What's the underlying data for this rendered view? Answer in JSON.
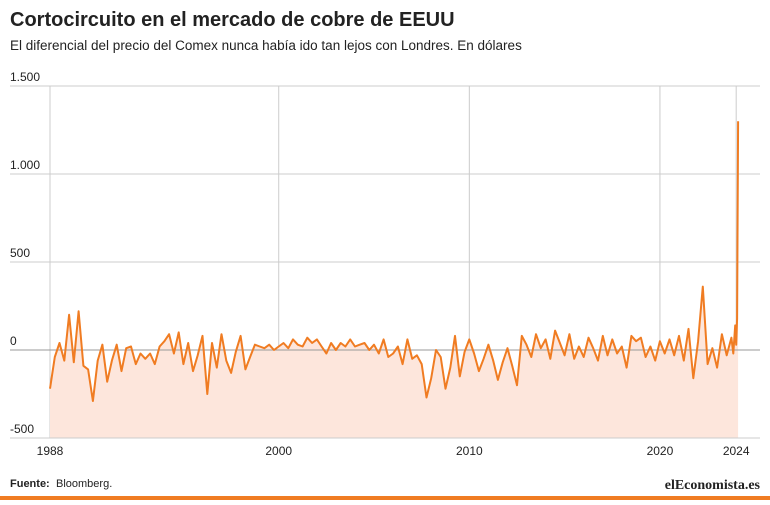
{
  "chart_data": {
    "type": "line",
    "title": "Cortocircuito en el mercado de cobre de EEUU",
    "subtitle": "El diferencial del precio del Comex nunca había ido tan lejos con Londres. En dólares",
    "source_label": "Fuente:",
    "source": "Bloomberg.",
    "brand": "elEconomista.es",
    "color": "#f07c22",
    "fill_color": "#fde6dc",
    "grid": true,
    "xlim": [
      1988,
      2024.2
    ],
    "ylim": [
      -500,
      1500
    ],
    "xticks": [
      1988,
      2000,
      2010,
      2020,
      2024
    ],
    "yticks": [
      -500,
      0,
      500,
      {
        "value": 1000,
        "label": "1.000"
      },
      {
        "value": 1500,
        "label": "1.500"
      }
    ],
    "x": [
      1988,
      1988.25,
      1988.5,
      1988.75,
      1989,
      1989.25,
      1989.5,
      1989.75,
      1990,
      1990.25,
      1990.5,
      1990.75,
      1991,
      1991.25,
      1991.5,
      1991.75,
      1992,
      1992.25,
      1992.5,
      1992.75,
      1993,
      1993.25,
      1993.5,
      1993.75,
      1994,
      1994.25,
      1994.5,
      1994.75,
      1995,
      1995.25,
      1995.5,
      1995.75,
      1996,
      1996.25,
      1996.5,
      1996.75,
      1997,
      1997.25,
      1997.5,
      1997.75,
      1998,
      1998.25,
      1998.5,
      1998.75,
      1999,
      1999.25,
      1999.5,
      1999.75,
      2000,
      2000.25,
      2000.5,
      2000.75,
      2001,
      2001.25,
      2001.5,
      2001.75,
      2002,
      2002.25,
      2002.5,
      2002.75,
      2003,
      2003.25,
      2003.5,
      2003.75,
      2004,
      2004.25,
      2004.5,
      2004.75,
      2005,
      2005.25,
      2005.5,
      2005.75,
      2006,
      2006.25,
      2006.5,
      2006.75,
      2007,
      2007.25,
      2007.5,
      2007.75,
      2008,
      2008.25,
      2008.5,
      2008.75,
      2009,
      2009.25,
      2009.5,
      2009.75,
      2010,
      2010.25,
      2010.5,
      2010.75,
      2011,
      2011.25,
      2011.5,
      2011.75,
      2012,
      2012.25,
      2012.5,
      2012.75,
      2013,
      2013.25,
      2013.5,
      2013.75,
      2014,
      2014.25,
      2014.5,
      2014.75,
      2015,
      2015.25,
      2015.5,
      2015.75,
      2016,
      2016.25,
      2016.5,
      2016.75,
      2017,
      2017.25,
      2017.5,
      2017.75,
      2018,
      2018.25,
      2018.5,
      2018.75,
      2019,
      2019.25,
      2019.5,
      2019.75,
      2020,
      2020.25,
      2020.5,
      2020.75,
      2021,
      2021.25,
      2021.5,
      2021.75,
      2022,
      2022.25,
      2022.5,
      2022.75,
      2023,
      2023.25,
      2023.5,
      2023.75,
      2023.85,
      2023.95,
      2024,
      2024.05,
      2024.1
    ],
    "values": [
      -220,
      -40,
      40,
      -60,
      200,
      -70,
      220,
      -90,
      -110,
      -290,
      -60,
      30,
      -180,
      -60,
      30,
      -120,
      10,
      20,
      -80,
      -20,
      -50,
      -20,
      -80,
      20,
      50,
      90,
      -20,
      100,
      -80,
      40,
      -120,
      -30,
      80,
      -250,
      40,
      -100,
      90,
      -60,
      -130,
      -10,
      80,
      -110,
      -40,
      30,
      20,
      10,
      30,
      0,
      20,
      40,
      10,
      60,
      30,
      20,
      70,
      40,
      60,
      20,
      -20,
      40,
      0,
      40,
      20,
      60,
      20,
      30,
      40,
      0,
      30,
      -20,
      60,
      -40,
      -20,
      20,
      -80,
      60,
      -50,
      -30,
      -80,
      -270,
      -160,
      0,
      -40,
      -220,
      -100,
      80,
      -150,
      -10,
      60,
      -20,
      -120,
      -50,
      30,
      -60,
      -170,
      -70,
      10,
      -90,
      -200,
      80,
      30,
      -40,
      90,
      10,
      60,
      -50,
      110,
      40,
      -30,
      90,
      -50,
      20,
      -40,
      70,
      10,
      -60,
      80,
      -30,
      60,
      -20,
      20,
      -100,
      80,
      50,
      70,
      -40,
      20,
      -60,
      50,
      -20,
      60,
      -30,
      80,
      -60,
      120,
      -160,
      50,
      360,
      -80,
      10,
      -100,
      90,
      -30,
      70,
      -20,
      140,
      30,
      180,
      1300
    ]
  }
}
